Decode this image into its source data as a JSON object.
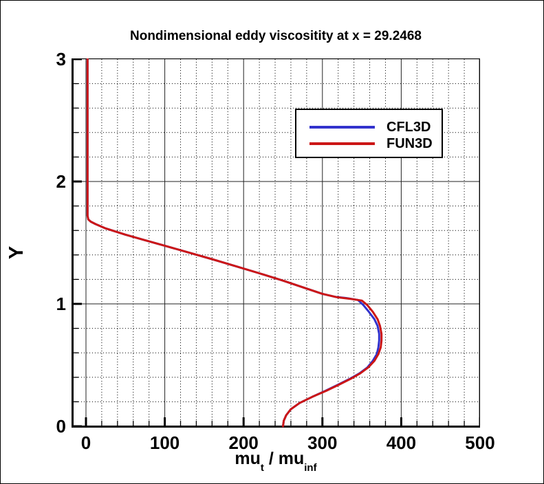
{
  "figure": {
    "title": "Nondimensional eddy viscositity at x = 29.2468",
    "background_color": "#ffffff",
    "frame_border_color": "#000000"
  },
  "axes": {
    "x": {
      "title_parts": {
        "mu1": "mu",
        "sub1": "t",
        "separator": " / ",
        "mu2": "mu",
        "sub2": "inf"
      },
      "major_ticks": [
        "0",
        "100",
        "200",
        "300",
        "400",
        "500"
      ]
    },
    "y": {
      "title": "Y",
      "major_ticks": [
        "0",
        "1",
        "2",
        "3"
      ]
    }
  },
  "legend": {
    "items": [
      {
        "label": "CFL3D",
        "color": "#3232cd"
      },
      {
        "label": "FUN3D",
        "color": "#cc1616"
      }
    ]
  },
  "chart_data": {
    "type": "line",
    "title": "Nondimensional eddy viscositity at x = 29.2468",
    "xlabel": "mu_t / mu_inf",
    "ylabel": "Y",
    "xlim": [
      -18,
      500
    ],
    "ylim": [
      0,
      3
    ],
    "x_major_ticks": [
      0,
      100,
      200,
      300,
      400,
      500
    ],
    "x_minor_step": 20,
    "y_major_ticks": [
      0,
      1,
      2,
      3
    ],
    "y_minor_step": 0.2,
    "grid": {
      "major": "solid",
      "minor": "dotted"
    },
    "legend_position": "upper-center-inside",
    "series": [
      {
        "name": "CFL3D",
        "color": "#3232cd",
        "points": [
          [
            2,
            3.0
          ],
          [
            2,
            2.4
          ],
          [
            2,
            1.9
          ],
          [
            2,
            1.72
          ],
          [
            3,
            1.69
          ],
          [
            6,
            1.672
          ],
          [
            12,
            1.652
          ],
          [
            25,
            1.617
          ],
          [
            50,
            1.566
          ],
          [
            75,
            1.52
          ],
          [
            100,
            1.475
          ],
          [
            130,
            1.42
          ],
          [
            160,
            1.365
          ],
          [
            190,
            1.308
          ],
          [
            220,
            1.25
          ],
          [
            250,
            1.19
          ],
          [
            275,
            1.136
          ],
          [
            300,
            1.082
          ],
          [
            316,
            1.058
          ],
          [
            330,
            1.048
          ],
          [
            345,
            1.032
          ],
          [
            352,
            0.99
          ],
          [
            359,
            0.935
          ],
          [
            366,
            0.875
          ],
          [
            370,
            0.82
          ],
          [
            372,
            0.755
          ],
          [
            372,
            0.7
          ],
          [
            371,
            0.645
          ],
          [
            369,
            0.59
          ],
          [
            364,
            0.535
          ],
          [
            357,
            0.48
          ],
          [
            347,
            0.432
          ],
          [
            335,
            0.388
          ],
          [
            320,
            0.34
          ],
          [
            304,
            0.29
          ],
          [
            287,
            0.24
          ],
          [
            271,
            0.19
          ],
          [
            260,
            0.14
          ],
          [
            254,
            0.09
          ],
          [
            251,
            0.045
          ],
          [
            250,
            0.0
          ]
        ]
      },
      {
        "name": "FUN3D",
        "color": "#cc1616",
        "points": [
          [
            2,
            3.0
          ],
          [
            2,
            2.4
          ],
          [
            2,
            1.9
          ],
          [
            2,
            1.72
          ],
          [
            3,
            1.69
          ],
          [
            6,
            1.672
          ],
          [
            12,
            1.652
          ],
          [
            25,
            1.617
          ],
          [
            50,
            1.566
          ],
          [
            75,
            1.52
          ],
          [
            100,
            1.475
          ],
          [
            130,
            1.42
          ],
          [
            160,
            1.365
          ],
          [
            190,
            1.308
          ],
          [
            220,
            1.25
          ],
          [
            250,
            1.19
          ],
          [
            275,
            1.136
          ],
          [
            300,
            1.082
          ],
          [
            318,
            1.055
          ],
          [
            334,
            1.042
          ],
          [
            350,
            1.027
          ],
          [
            357,
            0.99
          ],
          [
            364,
            0.935
          ],
          [
            370,
            0.875
          ],
          [
            373,
            0.82
          ],
          [
            375,
            0.755
          ],
          [
            375,
            0.7
          ],
          [
            374,
            0.645
          ],
          [
            371,
            0.59
          ],
          [
            366,
            0.535
          ],
          [
            358,
            0.48
          ],
          [
            348,
            0.432
          ],
          [
            336,
            0.388
          ],
          [
            321,
            0.34
          ],
          [
            305,
            0.29
          ],
          [
            287,
            0.24
          ],
          [
            271,
            0.19
          ],
          [
            260,
            0.14
          ],
          [
            254,
            0.09
          ],
          [
            251,
            0.045
          ],
          [
            250,
            0.0
          ]
        ]
      }
    ]
  }
}
